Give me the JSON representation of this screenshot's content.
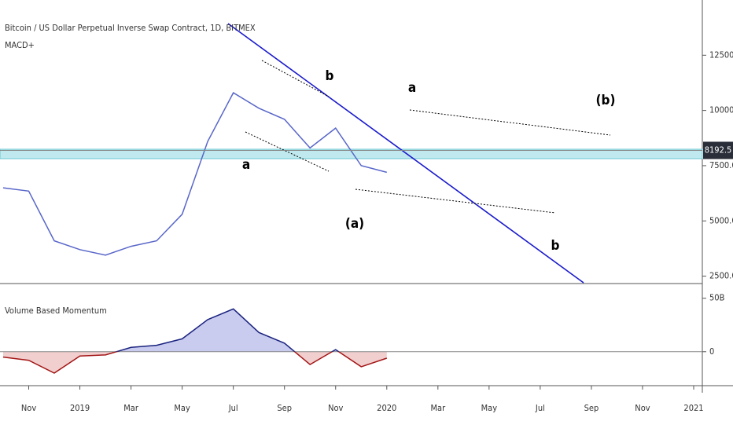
{
  "chart_data": [
    {
      "type": "line",
      "title": "Bitcoin / US Dollar Perpetual Inverse Swap Contract, 1D, BITMEX",
      "subtitle": "MACD+",
      "x": [
        "2018-10",
        "2018-11",
        "2018-12",
        "2019-01",
        "2019-02",
        "2019-03",
        "2019-04",
        "2019-05",
        "2019-06",
        "2019-07",
        "2019-08",
        "2019-09",
        "2019-10",
        "2019-11",
        "2019-12",
        "2020-01"
      ],
      "values": [
        6500,
        6350,
        4100,
        3700,
        3450,
        3850,
        4100,
        5300,
        8600,
        10800,
        10100,
        9600,
        8300,
        9200,
        7500,
        7200
      ],
      "color": "#5866c9",
      "xlim": [
        "2018-10",
        "2021-01"
      ],
      "ylim": [
        2200,
        15000
      ],
      "yticks": [
        {
          "value": 12500,
          "label": "12500.0"
        },
        {
          "value": 10000,
          "label": "10000.0"
        },
        {
          "value": 7500,
          "label": "7500.0"
        },
        {
          "value": 5000,
          "label": "5000.0"
        },
        {
          "value": 2500,
          "label": "2500.0"
        }
      ],
      "last_price": 8192.5,
      "annotations": [
        "a",
        "b",
        "a",
        "(b)",
        "(a)",
        "b"
      ]
    },
    {
      "type": "area",
      "title": "Volume Based Momentum",
      "x": [
        "2018-10",
        "2018-11",
        "2018-12",
        "2019-01",
        "2019-02",
        "2019-03",
        "2019-04",
        "2019-05",
        "2019-06",
        "2019-07",
        "2019-08",
        "2019-09",
        "2019-10",
        "2019-11",
        "2019-12",
        "2020-01"
      ],
      "values": [
        -5,
        -8,
        -20,
        -4,
        -3,
        4,
        6,
        12,
        30,
        40,
        18,
        8,
        -12,
        2,
        -14,
        -6
      ],
      "color": "#1a237e",
      "negative_color": "#a31515",
      "fill": "#c9cbef",
      "negative_fill": "#f1cfcf",
      "xlim": [
        "2018-10",
        "2021-01"
      ],
      "ylim": [
        -31,
        63
      ],
      "yticks": [
        {
          "value": 50,
          "label": "50B"
        },
        0
      ],
      "xticks": [
        {
          "value": "2018-11",
          "label": "Nov"
        },
        {
          "value": "2019-01",
          "label": "2019"
        },
        {
          "value": "2019-03",
          "label": "Mar"
        },
        {
          "value": "2019-05",
          "label": "May"
        },
        {
          "value": "2019-07",
          "label": "Jul"
        },
        {
          "value": "2019-09",
          "label": "Sep"
        },
        {
          "value": "2019-11",
          "label": "Nov"
        },
        {
          "value": "2020-01",
          "label": "2020"
        },
        {
          "value": "2020-03",
          "label": "Mar"
        },
        {
          "value": "2020-05",
          "label": "May"
        },
        {
          "value": "2020-07",
          "label": "Jul"
        },
        {
          "value": "2020-09",
          "label": "Sep"
        },
        {
          "value": "2020-11",
          "label": "Nov"
        },
        {
          "value": "2021-01",
          "label": "2021"
        }
      ]
    }
  ]
}
